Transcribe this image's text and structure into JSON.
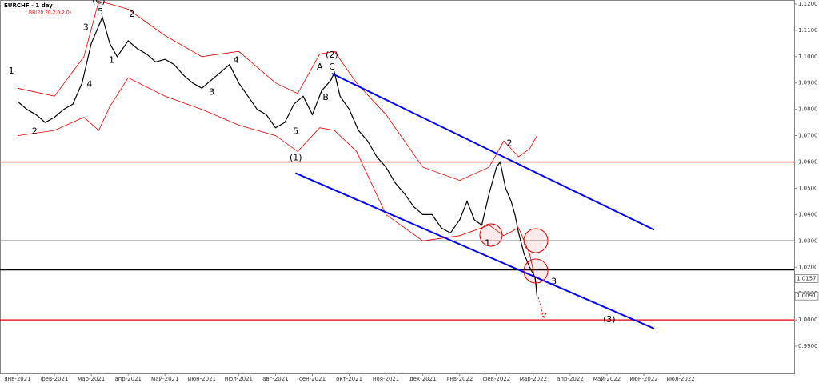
{
  "chart_data": {
    "type": "line",
    "title": "EURCHF - 1 day",
    "subtitle": "BB(20,20,2.0,2.0)",
    "ylim": [
      0.9797,
      1.1215
    ],
    "xlim": [
      -0.478,
      21.08
    ],
    "yticks": [
      {
        "value": 1.12,
        "label": "1.1200"
      },
      {
        "value": 1.11,
        "label": "1.1100"
      },
      {
        "value": 1.1,
        "label": "1.1000"
      },
      {
        "value": 1.09,
        "label": "1.0900"
      },
      {
        "value": 1.08,
        "label": "1.0800"
      },
      {
        "value": 1.07,
        "label": "1.0700"
      },
      {
        "value": 1.06,
        "label": "1.0600"
      },
      {
        "value": 1.05,
        "label": "1.0500"
      },
      {
        "value": 1.04,
        "label": "1.0400"
      },
      {
        "value": 1.03,
        "label": "1.0300"
      },
      {
        "value": 1.02,
        "label": "1.0200"
      },
      {
        "value": 1.01,
        "label": "1.0100"
      },
      {
        "value": 1,
        "label": "1.0000"
      },
      {
        "value": 0.99,
        "label": "0.9900"
      }
    ],
    "xticks": [
      {
        "value": 0,
        "label": "янв-2021"
      },
      {
        "value": 1,
        "label": "фев-2021"
      },
      {
        "value": 2,
        "label": "мар-2021"
      },
      {
        "value": 3,
        "label": "апр-2021"
      },
      {
        "value": 4,
        "label": "май-2021"
      },
      {
        "value": 5,
        "label": "июн-2021"
      },
      {
        "value": 6,
        "label": "июл-2021"
      },
      {
        "value": 7,
        "label": "авг-2021"
      },
      {
        "value": 8,
        "label": "сен-2021"
      },
      {
        "value": 9,
        "label": "окт-2021"
      },
      {
        "value": 10,
        "label": "ноя-2021"
      },
      {
        "value": 11,
        "label": "дек-2021"
      },
      {
        "value": 12,
        "label": "янв-2022"
      },
      {
        "value": 13,
        "label": "фев-2022"
      },
      {
        "value": 14,
        "label": "мар-2022"
      },
      {
        "value": 15,
        "label": "апр-2022"
      },
      {
        "value": 16,
        "label": "май-2022"
      },
      {
        "value": 17,
        "label": "июн-2022"
      },
      {
        "value": 18,
        "label": "июл-2022"
      }
    ],
    "series": [
      {
        "color": "#000000",
        "x": [
          0,
          0.25,
          0.5,
          0.75,
          1,
          1.25,
          1.5,
          1.75,
          2,
          2.15,
          2.3,
          2.5,
          2.7,
          3,
          3.25,
          3.5,
          3.75,
          4,
          4.25,
          4.5,
          4.75,
          5,
          5.25,
          5.5,
          5.75,
          6,
          6.25,
          6.5,
          6.75,
          7,
          7.25,
          7.5,
          7.75,
          8,
          8.25,
          8.5,
          8.6,
          8.75,
          9,
          9.25,
          9.5,
          9.75,
          10,
          10.25,
          10.5,
          10.75,
          11,
          11.25,
          11.5,
          11.75,
          12,
          12.2,
          12.4,
          12.6,
          12.8,
          13,
          13.1,
          13.25,
          13.4,
          13.5,
          13.6,
          13.75,
          13.9,
          14.05,
          14.1
        ],
        "values": [
          1.083,
          1.08,
          1.078,
          1.075,
          1.077,
          1.08,
          1.082,
          1.09,
          1.105,
          1.11,
          1.115,
          1.105,
          1.1,
          1.106,
          1.103,
          1.101,
          1.098,
          1.099,
          1.097,
          1.093,
          1.09,
          1.088,
          1.091,
          1.094,
          1.097,
          1.09,
          1.085,
          1.08,
          1.078,
          1.073,
          1.075,
          1.082,
          1.085,
          1.078,
          1.087,
          1.091,
          1.094,
          1.085,
          1.08,
          1.072,
          1.068,
          1.062,
          1.058,
          1.052,
          1.048,
          1.043,
          1.04,
          1.04,
          1.035,
          1.033,
          1.038,
          1.045,
          1.038,
          1.036,
          1.048,
          1.058,
          1.06,
          1.05,
          1.045,
          1.04,
          1.033,
          1.025,
          1.02,
          1.016,
          1.009
        ]
      }
    ],
    "bands": {
      "color": "#e00000",
      "x": [
        0,
        1,
        1.8,
        2.2,
        2.5,
        3,
        4,
        5,
        6,
        7,
        7.6,
        8.2,
        8.6,
        9.2,
        10,
        11,
        12,
        12.8,
        13.2,
        13.6,
        13.9,
        14.1
      ],
      "upper": [
        1.088,
        1.085,
        1.1,
        1.121,
        1.12,
        1.118,
        1.108,
        1.1,
        1.102,
        1.09,
        1.086,
        1.101,
        1.102,
        1.09,
        1.078,
        1.058,
        1.053,
        1.058,
        1.068,
        1.062,
        1.065,
        1.07
      ],
      "lower": [
        1.07,
        1.072,
        1.077,
        1.072,
        1.081,
        1.092,
        1.085,
        1.08,
        1.074,
        1.07,
        1.064,
        1.073,
        1.072,
        1.064,
        1.04,
        1.03,
        1.032,
        1.036,
        1.032,
        1.035,
        1.025,
        1.012
      ]
    },
    "levels": [
      {
        "value": 1.06,
        "color": "#e00000"
      },
      {
        "value": 1.03,
        "color": "#000000"
      },
      {
        "value": 1.019,
        "color": "#000000"
      },
      {
        "value": 1.0,
        "color": "#e00000"
      }
    ],
    "channels": [
      {
        "color": "#0000ff",
        "x": [
          8.53,
          17.28
        ],
        "values": [
          1.0936,
          1.0342
        ]
      },
      {
        "color": "#0000ff",
        "x": [
          7.54,
          17.28
        ],
        "values": [
          1.0558,
          0.9967
        ]
      }
    ],
    "price_labels": [
      {
        "value": 1.0157,
        "label": "1.0157"
      },
      {
        "value": 1.0091,
        "label": "1.0091"
      }
    ],
    "annotations": [
      {
        "text": "(C)",
        "x": 2.2,
        "y": 1.121
      },
      {
        "text": "5",
        "x": 2.25,
        "y": 1.117
      },
      {
        "text": "2",
        "x": 3.1,
        "y": 1.116
      },
      {
        "text": "3",
        "x": 1.85,
        "y": 1.111
      },
      {
        "text": "1",
        "x": 2.55,
        "y": 1.0985
      },
      {
        "text": "4",
        "x": 1.95,
        "y": 1.0895
      },
      {
        "text": "4",
        "x": 5.93,
        "y": 1.0985
      },
      {
        "text": "3",
        "x": 5.27,
        "y": 1.0865
      },
      {
        "text": "1",
        "x": -0.17,
        "y": 1.0945
      },
      {
        "text": "2",
        "x": 0.46,
        "y": 1.0715
      },
      {
        "text": "5",
        "x": 7.55,
        "y": 1.0715
      },
      {
        "text": "(1)",
        "x": 7.55,
        "y": 1.0615
      },
      {
        "text": "A",
        "x": 8.2,
        "y": 1.096
      },
      {
        "text": "(2)",
        "x": 8.53,
        "y": 1.1005
      },
      {
        "text": "C",
        "x": 8.53,
        "y": 1.096
      },
      {
        "text": "B",
        "x": 8.36,
        "y": 1.0845
      },
      {
        "text": "2",
        "x": 13.35,
        "y": 1.067
      },
      {
        "text": "1",
        "x": 12.76,
        "y": 1.029
      },
      {
        "text": "3",
        "x": 14.56,
        "y": 1.0145
      },
      {
        "text": "(3)",
        "x": 16.06,
        "y": 1.0
      }
    ]
  }
}
